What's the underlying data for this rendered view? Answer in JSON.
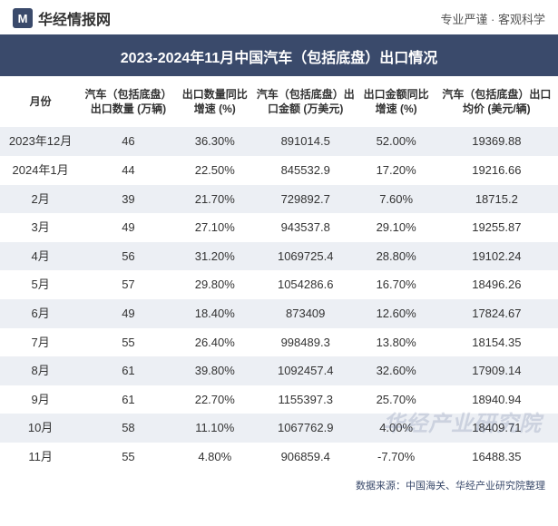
{
  "header": {
    "logo_glyph": "M",
    "site_name": "华经情报网",
    "tagline": "专业严谨 · 客观科学"
  },
  "title": "2023-2024年11月中国汽车（包括底盘）出口情况",
  "columns": [
    "月份",
    "汽车（包括底盘）出口数量\n(万辆)",
    "出口数量同比增速\n(%)",
    "汽车（包括底盘）出口金额\n(万美元)",
    "出口金额同比增速\n(%)",
    "汽车（包括底盘）出口均价\n(美元/辆)"
  ],
  "rows": [
    [
      "2023年12月",
      "46",
      "36.30%",
      "891014.5",
      "52.00%",
      "19369.88"
    ],
    [
      "2024年1月",
      "44",
      "22.50%",
      "845532.9",
      "17.20%",
      "19216.66"
    ],
    [
      "2月",
      "39",
      "21.70%",
      "729892.7",
      "7.60%",
      "18715.2"
    ],
    [
      "3月",
      "49",
      "27.10%",
      "943537.8",
      "29.10%",
      "19255.87"
    ],
    [
      "4月",
      "56",
      "31.20%",
      "1069725.4",
      "28.80%",
      "19102.24"
    ],
    [
      "5月",
      "57",
      "29.80%",
      "1054286.6",
      "16.70%",
      "18496.26"
    ],
    [
      "6月",
      "49",
      "18.40%",
      "873409",
      "12.60%",
      "17824.67"
    ],
    [
      "7月",
      "55",
      "26.40%",
      "998489.3",
      "13.80%",
      "18154.35"
    ],
    [
      "8月",
      "61",
      "39.80%",
      "1092457.4",
      "32.60%",
      "17909.14"
    ],
    [
      "9月",
      "61",
      "22.70%",
      "1155397.3",
      "25.70%",
      "18940.94"
    ],
    [
      "10月",
      "58",
      "11.10%",
      "1067762.9",
      "4.00%",
      "18409.71"
    ],
    [
      "11月",
      "55",
      "4.80%",
      "906859.4",
      "-7.70%",
      "16488.35"
    ]
  ],
  "source": "数据来源：中国海关、华经产业研究院整理",
  "watermark": "华经产业研究院",
  "style": {
    "header_bg": "#3a4a6b",
    "row_stripe_bg": "#eceff4",
    "row_plain_bg": "#ffffff",
    "text_color": "#333333",
    "source_color": "#3a4a6b",
    "title_fontsize": 16,
    "header_fontsize": 12,
    "cell_fontsize": 13,
    "column_widths_pct": [
      14.5,
      17,
      14,
      18.5,
      14,
      22
    ],
    "watermark_color": "rgba(90,110,150,0.22)"
  }
}
